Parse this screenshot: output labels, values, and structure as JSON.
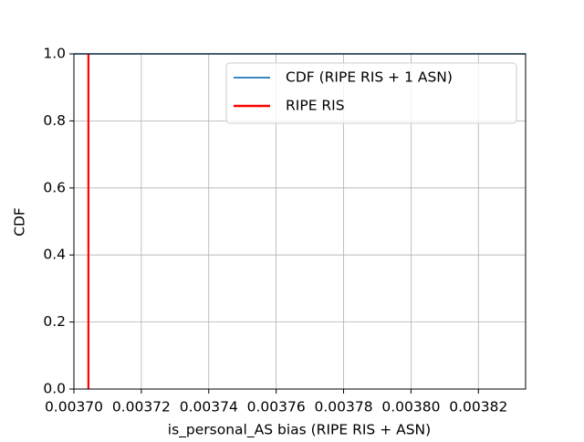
{
  "chart_data": {
    "type": "line",
    "xlabel": "is_personal_AS bias (RIPE RIS + ASN)",
    "ylabel": "CDF",
    "xlim": [
      0.0037,
      0.003834
    ],
    "ylim": [
      0,
      1
    ],
    "xticks": [
      {
        "value": 0.0037,
        "label": "0.00370"
      },
      {
        "value": 0.00372,
        "label": "0.00372"
      },
      {
        "value": 0.00374,
        "label": "0.00374"
      },
      {
        "value": 0.00376,
        "label": "0.00376"
      },
      {
        "value": 0.00378,
        "label": "0.00378"
      },
      {
        "value": 0.0038,
        "label": "0.00380"
      },
      {
        "value": 0.00382,
        "label": "0.00382"
      }
    ],
    "yticks": [
      {
        "value": 0,
        "label": "0.0"
      },
      {
        "value": 0.2,
        "label": "0.2"
      },
      {
        "value": 0.4,
        "label": "0.4"
      },
      {
        "value": 0.6,
        "label": "0.6"
      },
      {
        "value": 0.8,
        "label": "0.8"
      },
      {
        "value": 1,
        "label": "1.0"
      }
    ],
    "grid": true,
    "legend": "upper right",
    "series": [
      {
        "name": "CDF (RIPE RIS + 1 ASN)",
        "color": "#1f77b4",
        "x": [
          0.0037,
          0.003834
        ],
        "values": [
          1,
          1
        ]
      },
      {
        "name": "RIPE RIS",
        "color": "#ff0000",
        "x": [
          0.0037043,
          0.0037043
        ],
        "values": [
          0,
          1
        ]
      }
    ]
  }
}
